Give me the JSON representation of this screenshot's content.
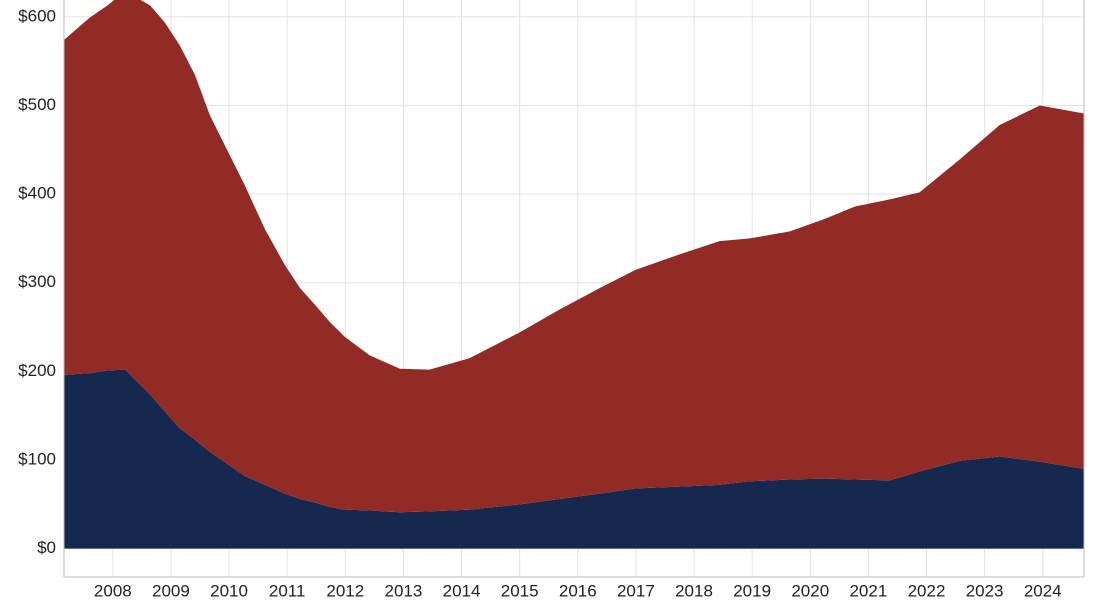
{
  "chart_data": {
    "type": "stacked-area",
    "x": [
      2007.16,
      2007.6,
      2007.91,
      2008.21,
      2008.64,
      2008.89,
      2009.15,
      2009.41,
      2009.67,
      2009.98,
      2010.27,
      2010.62,
      2010.96,
      2011.22,
      2011.48,
      2011.73,
      2011.99,
      2012.42,
      2012.94,
      2013.45,
      2014.14,
      2015.0,
      2015.69,
      2016.38,
      2017.01,
      2017.75,
      2018.44,
      2018.96,
      2019.65,
      2020.25,
      2020.77,
      2021.37,
      2021.88,
      2022.57,
      2023.26,
      2023.95,
      2024.71
    ],
    "series": [
      {
        "color": "#14294d",
        "values": [
          196,
          198,
          201,
          202,
          174,
          155,
          136,
          123,
          109,
          95,
          82,
          72,
          62,
          56,
          52,
          47,
          44,
          43,
          41,
          42,
          44,
          50,
          56,
          62,
          68,
          70,
          72,
          76,
          78,
          79,
          78,
          77,
          87,
          99,
          104,
          98,
          90
        ]
      },
      {
        "color": "#922b25",
        "values": [
          378,
          401,
          412,
          427,
          439,
          439,
          432,
          412,
          380,
          353,
          328,
          288,
          258,
          238,
          223,
          209,
          195,
          175,
          162,
          160,
          171,
          194,
          214,
          232,
          247,
          262,
          275,
          274,
          280,
          293,
          308,
          317,
          315,
          340,
          374,
          402,
          401
        ]
      }
    ],
    "xlim": [
      2007.16,
      2024.71
    ],
    "xticks": [
      2008,
      2009,
      2010,
      2011,
      2012,
      2013,
      2014,
      2015,
      2016,
      2017,
      2018,
      2019,
      2020,
      2021,
      2022,
      2023,
      2024
    ],
    "ylim": [
      -32,
      619
    ],
    "yticks": [
      {
        "value": 0,
        "label": "$0"
      },
      {
        "value": 100,
        "label": "$100"
      },
      {
        "value": 200,
        "label": "$200"
      },
      {
        "value": 300,
        "label": "$300"
      },
      {
        "value": 400,
        "label": "$400"
      },
      {
        "value": 500,
        "label": "$500"
      },
      {
        "value": 600,
        "label": "$600"
      }
    ],
    "grid": true
  }
}
